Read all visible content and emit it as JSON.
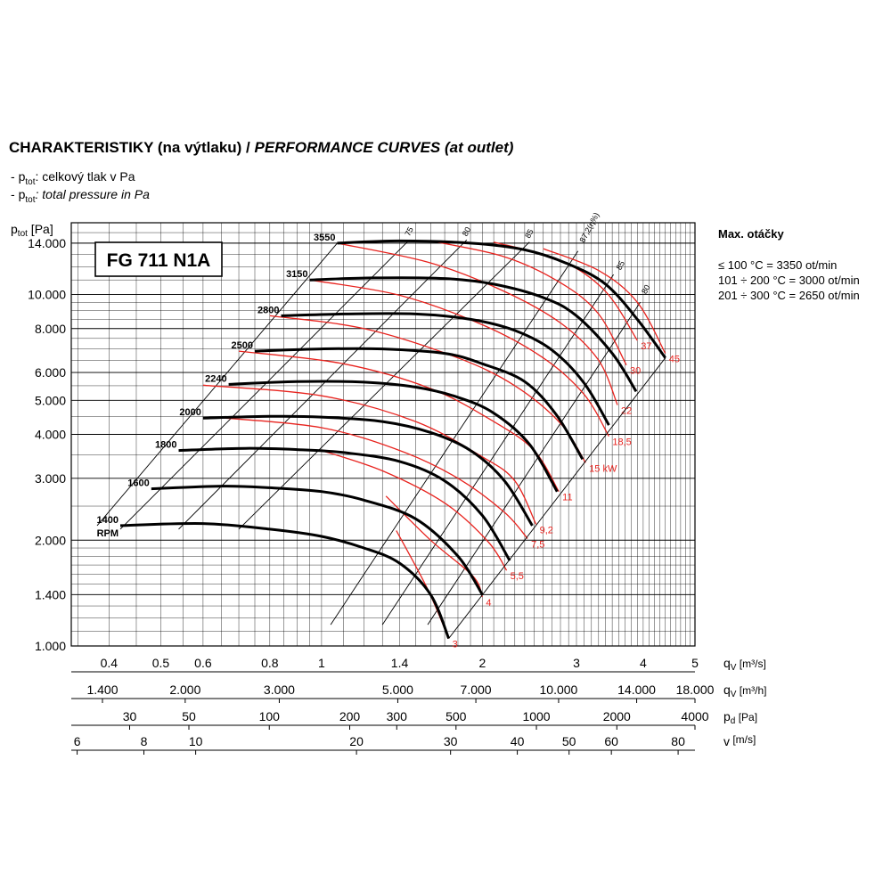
{
  "heading": {
    "cz": "CHARAKTERISTIKY (na výtlaku) /",
    "en": "PERFORMANCE CURVES (at outlet)"
  },
  "legend": {
    "cz_sym": "p",
    "cz_sub": "tot",
    "cz_text": ": celkový tlak v Pa",
    "en_sym": "p",
    "en_sub": "tot",
    "en_text": ": total pressure in Pa",
    "dash": "- "
  },
  "max_rpm": {
    "title": "Max. otáčky",
    "rows": [
      "≤ 100 °C = 3350 ot/min",
      "101 ÷ 200 °C = 3000 ot/min",
      "201 ÷ 300 °C = 2650 ot/min"
    ]
  },
  "colors": {
    "curve": "#000000",
    "power": "#e8231e",
    "grid": "#000000"
  },
  "chart_data": {
    "type": "line",
    "model": "FG 711 N1A",
    "y_axis": {
      "label_sym": "p",
      "label_sub": "tot",
      "label_unit": "[Pa]",
      "scale": "log",
      "ylim": [
        1000,
        16000
      ],
      "ticks": [
        1000,
        1400,
        2000,
        3000,
        4000,
        5000,
        6000,
        8000,
        10000,
        14000
      ],
      "tick_labels": [
        "1.000",
        "1.400",
        "2.000",
        "3.000",
        "4.000",
        "5.000",
        "6.000",
        "8.000",
        "10.000",
        "14.000"
      ]
    },
    "x_axes": [
      {
        "label": "q",
        "sub": "V",
        "unit": "[m³/s]",
        "scale": "log",
        "ticks": [
          0.4,
          0.5,
          0.6,
          0.8,
          1,
          1.4,
          2,
          3,
          4,
          5
        ],
        "tick_labels": [
          "0.4",
          "0.5",
          "0.6",
          "0.8",
          "1",
          "1.4",
          "2",
          "3",
          "4",
          "5"
        ]
      },
      {
        "label": "q",
        "sub": "V",
        "unit": "[m³/h]",
        "scale": "log",
        "ticks": [
          1400,
          2000,
          3000,
          5000,
          7000,
          10000,
          14000,
          18000
        ],
        "tick_labels": [
          "1.400",
          "2.000",
          "3.000",
          "5.000",
          "7.000",
          "10.000",
          "14.000",
          "18.000"
        ]
      },
      {
        "label": "p",
        "sub": "d",
        "unit": "[Pa]",
        "scale": "log",
        "ticks": [
          30,
          50,
          100,
          200,
          300,
          500,
          1000,
          2000,
          4000
        ],
        "tick_labels": [
          "30",
          "50",
          "100",
          "200",
          "300",
          "500",
          "1000",
          "2000",
          "4000"
        ]
      },
      {
        "label": "v",
        "sub": "",
        "unit": "[m/s]",
        "scale": "log",
        "ticks": [
          6,
          8,
          10,
          20,
          30,
          40,
          50,
          60,
          80
        ],
        "tick_labels": [
          "6",
          "8",
          "10",
          "20",
          "30",
          "40",
          "50",
          "60",
          "80"
        ]
      }
    ],
    "rpm_unit": "RPM",
    "series": [
      {
        "name": "1400",
        "points": [
          [
            0.42,
            2200
          ],
          [
            0.6,
            2230
          ],
          [
            0.8,
            2150
          ],
          [
            1.0,
            2050
          ],
          [
            1.2,
            1900
          ],
          [
            1.4,
            1720
          ],
          [
            1.6,
            1400
          ],
          [
            1.73,
            1050
          ]
        ]
      },
      {
        "name": "1600",
        "points": [
          [
            0.48,
            2800
          ],
          [
            0.65,
            2850
          ],
          [
            0.8,
            2820
          ],
          [
            1.0,
            2750
          ],
          [
            1.2,
            2600
          ],
          [
            1.5,
            2300
          ],
          [
            1.8,
            1800
          ],
          [
            2.0,
            1400
          ]
        ]
      },
      {
        "name": "1800",
        "points": [
          [
            0.54,
            3600
          ],
          [
            0.72,
            3650
          ],
          [
            0.9,
            3620
          ],
          [
            1.1,
            3550
          ],
          [
            1.4,
            3350
          ],
          [
            1.7,
            2950
          ],
          [
            2.0,
            2350
          ],
          [
            2.25,
            1750
          ]
        ]
      },
      {
        "name": "2000",
        "points": [
          [
            0.6,
            4450
          ],
          [
            0.8,
            4500
          ],
          [
            1.0,
            4480
          ],
          [
            1.3,
            4350
          ],
          [
            1.6,
            4050
          ],
          [
            1.9,
            3600
          ],
          [
            2.2,
            2950
          ],
          [
            2.48,
            2200
          ]
        ]
      },
      {
        "name": "2240",
        "points": [
          [
            0.67,
            5550
          ],
          [
            0.9,
            5650
          ],
          [
            1.2,
            5630
          ],
          [
            1.5,
            5450
          ],
          [
            1.8,
            5100
          ],
          [
            2.1,
            4600
          ],
          [
            2.45,
            3750
          ],
          [
            2.76,
            2750
          ]
        ]
      },
      {
        "name": "2500",
        "points": [
          [
            0.75,
            6900
          ],
          [
            1.0,
            7000
          ],
          [
            1.3,
            7000
          ],
          [
            1.7,
            6800
          ],
          [
            2.0,
            6350
          ],
          [
            2.4,
            5650
          ],
          [
            2.75,
            4550
          ],
          [
            3.08,
            3400
          ]
        ]
      },
      {
        "name": "2800",
        "points": [
          [
            0.84,
            8700
          ],
          [
            1.1,
            8800
          ],
          [
            1.5,
            8800
          ],
          [
            1.9,
            8500
          ],
          [
            2.3,
            7900
          ],
          [
            2.7,
            6950
          ],
          [
            3.1,
            5600
          ],
          [
            3.45,
            4250
          ]
        ]
      },
      {
        "name": "3150",
        "points": [
          [
            0.95,
            11000
          ],
          [
            1.25,
            11150
          ],
          [
            1.7,
            11100
          ],
          [
            2.1,
            10700
          ],
          [
            2.6,
            9800
          ],
          [
            3.0,
            8700
          ],
          [
            3.5,
            6800
          ],
          [
            3.88,
            5300
          ]
        ]
      },
      {
        "name": "3550",
        "points": [
          [
            1.07,
            14000
          ],
          [
            1.4,
            14200
          ],
          [
            1.9,
            14000
          ],
          [
            2.4,
            13400
          ],
          [
            2.9,
            12200
          ],
          [
            3.4,
            10700
          ],
          [
            3.9,
            8500
          ],
          [
            4.4,
            6600
          ]
        ]
      }
    ],
    "power_curves": [
      {
        "label": "3",
        "points": [
          [
            1.38,
            2130
          ],
          [
            1.58,
            1450
          ],
          [
            1.73,
            1050
          ]
        ]
      },
      {
        "label": "4",
        "points": [
          [
            1.32,
            2670
          ],
          [
            1.6,
            2000
          ],
          [
            1.92,
            1580
          ],
          [
            2.0,
            1380
          ]
        ]
      },
      {
        "label": "5,5",
        "points": [
          [
            1.0,
            3600
          ],
          [
            1.3,
            3150
          ],
          [
            1.7,
            2550
          ],
          [
            2.05,
            1980
          ],
          [
            2.22,
            1640
          ]
        ]
      },
      {
        "label": "7,5",
        "points": [
          [
            0.65,
            4460
          ],
          [
            1.0,
            4180
          ],
          [
            1.4,
            3600
          ],
          [
            1.8,
            3000
          ],
          [
            2.2,
            2400
          ],
          [
            2.43,
            2020
          ]
        ]
      },
      {
        "label": "9,2",
        "points": [
          [
            0.6,
            5520
          ],
          [
            1.0,
            5150
          ],
          [
            1.5,
            4350
          ],
          [
            2.0,
            3450
          ],
          [
            2.3,
            2950
          ],
          [
            2.52,
            2220
          ]
        ]
      },
      {
        "label": "11",
        "points": [
          [
            0.7,
            6900
          ],
          [
            1.1,
            6350
          ],
          [
            1.6,
            5400
          ],
          [
            2.1,
            4350
          ],
          [
            2.5,
            3600
          ],
          [
            2.78,
            2750
          ]
        ]
      },
      {
        "label": "15 kW",
        "points": [
          [
            0.8,
            8700
          ],
          [
            1.2,
            8000
          ],
          [
            1.8,
            6600
          ],
          [
            2.3,
            5500
          ],
          [
            2.8,
            4300
          ],
          [
            3.12,
            3320
          ]
        ]
      },
      {
        "label": "18,5",
        "points": [
          [
            0.95,
            11000
          ],
          [
            1.4,
            9950
          ],
          [
            2.0,
            8200
          ],
          [
            2.6,
            6600
          ],
          [
            3.1,
            5200
          ],
          [
            3.45,
            3950
          ]
        ]
      },
      {
        "label": "22",
        "points": [
          [
            1.07,
            14000
          ],
          [
            1.6,
            12300
          ],
          [
            2.2,
            10200
          ],
          [
            2.8,
            8300
          ],
          [
            3.3,
            6500
          ],
          [
            3.58,
            4850
          ]
        ]
      },
      {
        "label": "30",
        "points": [
          [
            1.6,
            14200
          ],
          [
            2.2,
            12800
          ],
          [
            2.8,
            10800
          ],
          [
            3.3,
            8800
          ],
          [
            3.72,
            6300
          ]
        ]
      },
      {
        "label": "37",
        "points": [
          [
            2.1,
            14100
          ],
          [
            2.8,
            12500
          ],
          [
            3.4,
            10200
          ],
          [
            3.9,
            7400
          ]
        ]
      },
      {
        "label": "45",
        "points": [
          [
            2.6,
            13500
          ],
          [
            3.3,
            11700
          ],
          [
            3.9,
            9500
          ],
          [
            4.4,
            6800
          ]
        ]
      }
    ],
    "efficiency_lines": [
      {
        "label": "75",
        "label_at": [
          1.46,
          14600
        ],
        "points": [
          [
            0.42,
            2150
          ],
          [
            1.46,
            14300
          ]
        ]
      },
      {
        "label": "80",
        "label_at": [
          1.87,
          14600
        ],
        "points": [
          [
            0.54,
            2150
          ],
          [
            1.87,
            14300
          ]
        ]
      },
      {
        "label": "85",
        "label_at": [
          2.45,
          14400
        ],
        "points": [
          [
            0.7,
            2150
          ],
          [
            2.45,
            14100
          ]
        ]
      },
      {
        "label": "87,2(η%)",
        "label_at": [
          3.1,
          14000
        ],
        "points": [
          [
            1.04,
            1150
          ],
          [
            3.02,
            13300
          ]
        ]
      },
      {
        "label": "85",
        "label_at": [
          3.63,
          11700
        ],
        "points": [
          [
            1.3,
            1150
          ],
          [
            3.52,
            11400
          ]
        ]
      },
      {
        "label": "80",
        "label_at": [
          4.05,
          10000
        ],
        "points": [
          [
            1.58,
            1150
          ],
          [
            3.95,
            9500
          ]
        ]
      }
    ]
  }
}
